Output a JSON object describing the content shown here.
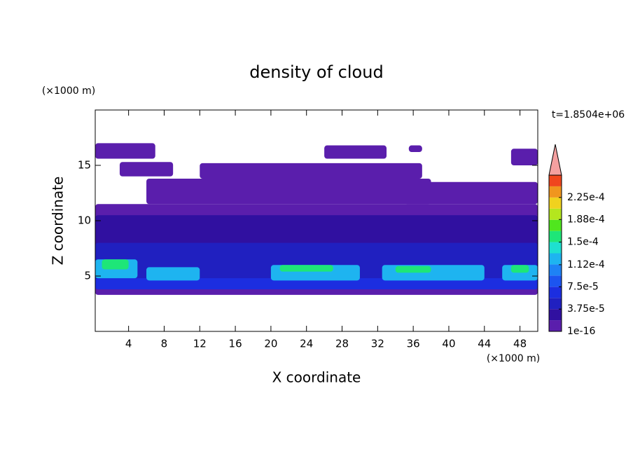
{
  "chart_data": {
    "type": "contour",
    "title": "density of cloud",
    "x_label": "X coordinate",
    "y_label": "Z coordinate",
    "x_unit": "(×1000 m)",
    "y_unit": "(×1000 m)",
    "time_label": "t=1.8504e+06",
    "xlim": [
      0.25,
      50
    ],
    "ylim": [
      0,
      20
    ],
    "xticks": [
      4,
      8,
      12,
      16,
      20,
      24,
      28,
      32,
      36,
      40,
      44,
      48
    ],
    "yticks": [
      5,
      10,
      15
    ],
    "colorbar": {
      "clim": [
        0,
        0.0002625
      ],
      "colors": [
        "#5a1eac",
        "#3010a0",
        "#2020c0",
        "#1c2ee0",
        "#1c55f0",
        "#1e82f5",
        "#1eb4f0",
        "#1ee0d0",
        "#1ee678",
        "#50e61e",
        "#b4e61e",
        "#f0d21e",
        "#f0961e",
        "#f0461e"
      ],
      "extend_color": "#f4a0a0",
      "ticks": [
        {
          "value": 1e-16,
          "label": "1e-16"
        },
        {
          "value": 3.75e-05,
          "label": "3.75e-5"
        },
        {
          "value": 7.5e-05,
          "label": "7.5e-5"
        },
        {
          "value": 0.000112,
          "label": "1.12e-4"
        },
        {
          "value": 0.00015,
          "label": "1.5e-4"
        },
        {
          "value": 0.000188,
          "label": "1.88e-4"
        },
        {
          "value": 0.000225,
          "label": "2.25e-4"
        }
      ]
    },
    "regions": [
      {
        "x": [
          0.25,
          50
        ],
        "z": [
          3.3,
          11.5
        ],
        "density": 1e-16
      },
      {
        "x": [
          0.25,
          7
        ],
        "z": [
          15.6,
          17
        ],
        "density": 1e-16
      },
      {
        "x": [
          3,
          9
        ],
        "z": [
          14,
          15.3
        ],
        "density": 1e-16
      },
      {
        "x": [
          6,
          38
        ],
        "z": [
          11.5,
          13.8
        ],
        "density": 1e-16
      },
      {
        "x": [
          12,
          37
        ],
        "z": [
          13.8,
          15.2
        ],
        "density": 1e-16
      },
      {
        "x": [
          26,
          33
        ],
        "z": [
          15.6,
          16.8
        ],
        "density": 1e-16
      },
      {
        "x": [
          35,
          50
        ],
        "z": [
          11.5,
          13.5
        ],
        "density": 1e-16
      },
      {
        "x": [
          47,
          50
        ],
        "z": [
          15,
          16.5
        ],
        "density": 1e-16
      },
      {
        "x": [
          35.5,
          37
        ],
        "z": [
          16.2,
          16.8
        ],
        "density": 1e-16
      },
      {
        "x": [
          0.25,
          50
        ],
        "z": [
          7.5,
          10.5
        ],
        "density": 2e-05
      },
      {
        "x": [
          0.25,
          50
        ],
        "z": [
          3.8,
          8
        ],
        "density": 5e-05
      },
      {
        "x": [
          0.25,
          50
        ],
        "z": [
          3.8,
          4.8
        ],
        "density": 7e-05
      },
      {
        "x": [
          0.25,
          5
        ],
        "z": [
          4.8,
          6.5
        ],
        "density": 0.00012
      },
      {
        "x": [
          1,
          4
        ],
        "z": [
          5.6,
          6.5
        ],
        "density": 0.00016
      },
      {
        "x": [
          6,
          12
        ],
        "z": [
          4.6,
          5.8
        ],
        "density": 0.00012
      },
      {
        "x": [
          20,
          30
        ],
        "z": [
          4.6,
          6
        ],
        "density": 0.00012
      },
      {
        "x": [
          21,
          27
        ],
        "z": [
          5.4,
          6
        ],
        "density": 0.00015
      },
      {
        "x": [
          32.5,
          44
        ],
        "z": [
          4.6,
          6
        ],
        "density": 0.00012
      },
      {
        "x": [
          34,
          38
        ],
        "z": [
          5.3,
          5.9
        ],
        "density": 0.000155
      },
      {
        "x": [
          46,
          50
        ],
        "z": [
          4.6,
          6
        ],
        "density": 0.00012
      },
      {
        "x": [
          47,
          49
        ],
        "z": [
          5.3,
          6
        ],
        "density": 0.00016
      }
    ]
  }
}
